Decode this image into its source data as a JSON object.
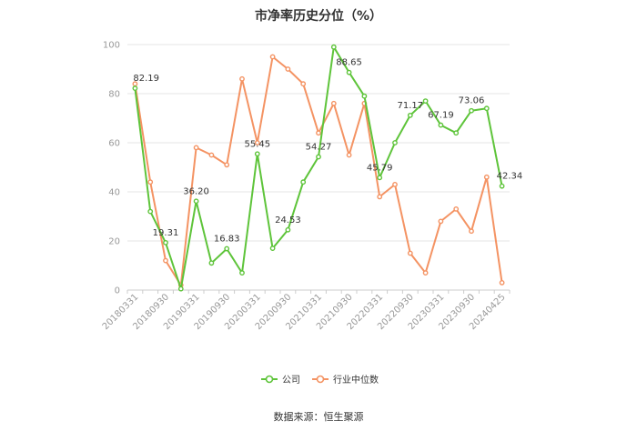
{
  "chart_data": {
    "type": "line",
    "title": "市净率历史分位（%）",
    "xlabel": "",
    "ylabel": "",
    "ylim": [
      0,
      100
    ],
    "yticks": [
      0,
      20,
      40,
      60,
      80,
      100
    ],
    "x_tick_labels": [
      "20180331",
      "20180930",
      "20190331",
      "20190930",
      "20200331",
      "20200930",
      "20210331",
      "20210930",
      "20220331",
      "20220930",
      "20230331",
      "20230930",
      "20240425"
    ],
    "x_tick_index": [
      0,
      2,
      4,
      6,
      8,
      10,
      12,
      14,
      16,
      18,
      20,
      22,
      24
    ],
    "grid": true,
    "legend_position": "bottom",
    "series": [
      {
        "name": "公司",
        "color": "#5ec43a",
        "values": [
          82.19,
          32,
          19.31,
          0.5,
          36.2,
          11,
          16.83,
          7,
          55.45,
          17,
          24.53,
          44,
          54.27,
          99,
          88.65,
          79,
          45.79,
          60,
          71.17,
          77,
          67.19,
          64,
          73.06,
          74,
          42.34
        ]
      },
      {
        "name": "行业中位数",
        "color": "#f49363",
        "values": [
          84,
          44,
          12,
          2,
          58,
          55,
          51,
          86,
          60,
          95,
          90,
          84,
          64,
          76,
          55,
          76,
          38,
          43,
          15,
          7,
          28,
          33,
          24,
          46,
          3
        ]
      }
    ],
    "data_labels": [
      {
        "index": 0,
        "text": "82.19"
      },
      {
        "index": 2,
        "text": "19.31"
      },
      {
        "index": 4,
        "text": "36.20"
      },
      {
        "index": 6,
        "text": "16.83"
      },
      {
        "index": 8,
        "text": "55.45"
      },
      {
        "index": 10,
        "text": "24.53"
      },
      {
        "index": 12,
        "text": "54.27"
      },
      {
        "index": 14,
        "text": "88.65"
      },
      {
        "index": 16,
        "text": "45.79"
      },
      {
        "index": 18,
        "text": "71.17"
      },
      {
        "index": 20,
        "text": "67.19"
      },
      {
        "index": 22,
        "text": "73.06"
      },
      {
        "index": 24,
        "text": "42.34"
      }
    ]
  },
  "source_text": "数据来源：恒生聚源"
}
